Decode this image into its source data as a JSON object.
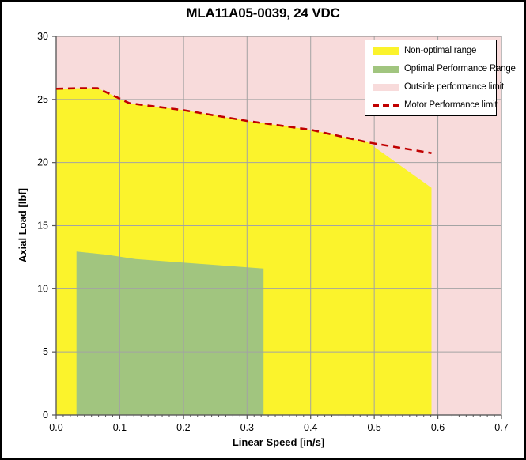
{
  "chart_data": {
    "type": "area",
    "title": "MLA11A05-0039, 24 VDC",
    "xlabel": "Linear Speed [in/s]",
    "ylabel": "Axial Load [lbf]",
    "xlim": [
      0,
      0.7
    ],
    "ylim": [
      0,
      30
    ],
    "grid": true,
    "legend_position": "top-right",
    "x_tick_values": [
      0,
      0.1,
      0.2,
      0.3,
      0.4,
      0.5,
      0.6,
      0.7
    ],
    "x_tick_labels": [
      "0.0",
      "0.1",
      "0.2",
      "0.3",
      "0.4",
      "0.5",
      "0.6",
      "0.7"
    ],
    "x_minor_intervals_per_major": 9,
    "y_tick_values": [
      0,
      5,
      10,
      15,
      20,
      25,
      30
    ],
    "y_tick_labels": [
      "0",
      "5",
      "10",
      "15",
      "20",
      "25",
      "30"
    ],
    "colors": {
      "outside_limit": "#F8DBDB",
      "non_optimal": "#FBF32C",
      "optimal": "#A1C57F",
      "motor_limit": "#C00000",
      "gridline": "#A3A3A3",
      "plot_border": "#909090",
      "axis_line": "#555555",
      "tick": "#555555",
      "text": "#000000"
    },
    "series": [
      {
        "name": "Outside performance limit",
        "key": "outside-performance-limit-area",
        "render": "background",
        "color": "#F8DBDB"
      },
      {
        "name": "Non-optimal range",
        "key": "non-optimal-range-area",
        "render": "area",
        "color": "#FBF32C",
        "points": [
          [
            0,
            25.85
          ],
          [
            0.04,
            25.9
          ],
          [
            0.065,
            25.9
          ],
          [
            0.115,
            24.7
          ],
          [
            0.2,
            24.15
          ],
          [
            0.3,
            23.3
          ],
          [
            0.4,
            22.6
          ],
          [
            0.49,
            21.6
          ],
          [
            0.59,
            18.0
          ],
          [
            0.59,
            0
          ],
          [
            0,
            0
          ]
        ]
      },
      {
        "name": "Optimal Performance Range",
        "key": "optimal-performance-range-area",
        "render": "area",
        "color": "#A1C57F",
        "points": [
          [
            0.032,
            0
          ],
          [
            0.032,
            12.95
          ],
          [
            0.08,
            12.7
          ],
          [
            0.125,
            12.35
          ],
          [
            0.326,
            11.6
          ],
          [
            0.326,
            0
          ]
        ]
      },
      {
        "name": "Motor Performance limit",
        "key": "motor-performance-limit-line",
        "render": "dashed-line",
        "color": "#C00000",
        "points": [
          [
            0,
            25.85
          ],
          [
            0.04,
            25.9
          ],
          [
            0.065,
            25.9
          ],
          [
            0.115,
            24.7
          ],
          [
            0.2,
            24.15
          ],
          [
            0.3,
            23.3
          ],
          [
            0.4,
            22.6
          ],
          [
            0.49,
            21.6
          ],
          [
            0.59,
            20.75
          ]
        ]
      }
    ]
  },
  "legend": {
    "items": [
      {
        "label": "Non-optimal range",
        "swatch": "area",
        "color": "#FBF32C"
      },
      {
        "label": "Optimal Performance Range",
        "swatch": "area",
        "color": "#A1C57F"
      },
      {
        "label": "Outside performance limit",
        "swatch": "area",
        "color": "#F8DBDB"
      },
      {
        "label": "Motor Performance limit",
        "swatch": "dash",
        "color": "#C00000"
      }
    ]
  }
}
